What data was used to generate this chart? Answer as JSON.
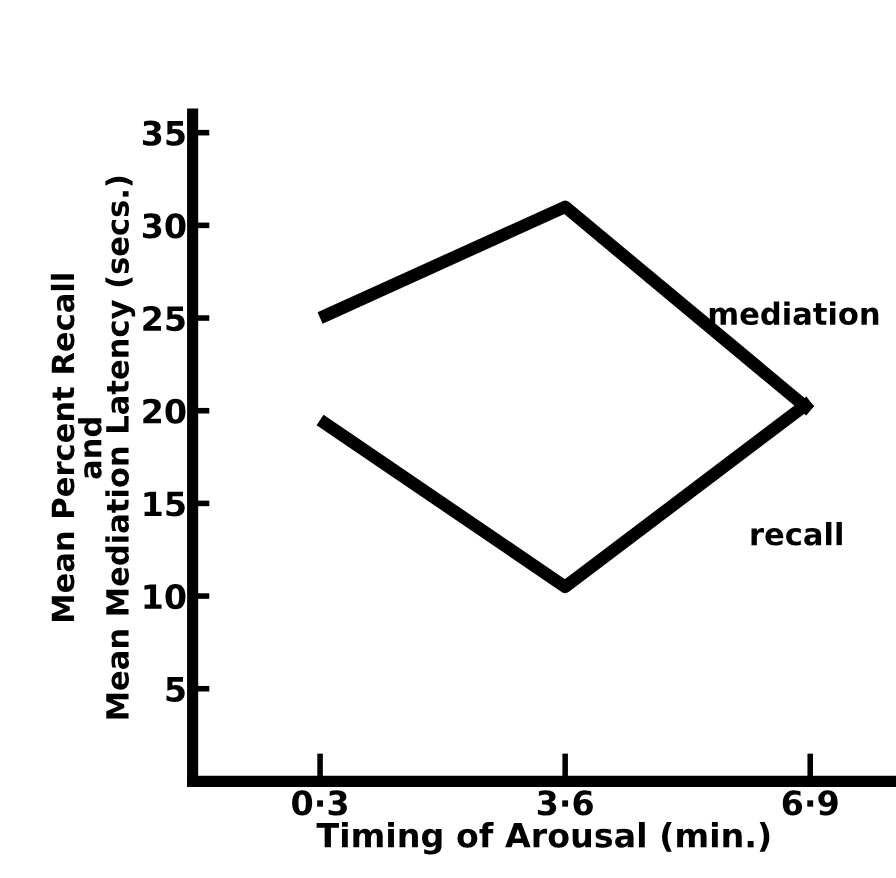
{
  "chart_data": {
    "type": "line",
    "xlabel": "Timing of Arousal (min.)",
    "ylabel": "Mean Percent Recall\nand\nMean Mediation Latency (secs.)",
    "categories": [
      "0·3",
      "3·6",
      "6·9"
    ],
    "series": [
      {
        "name": "mediation",
        "color": "#000000",
        "values": [
          25,
          31,
          20
        ]
      },
      {
        "name": "recall",
        "color": "#000000",
        "values": [
          19.5,
          10.5,
          20.5
        ]
      }
    ],
    "ylim": [
      0,
      36
    ],
    "yticks": [
      5,
      10,
      15,
      20,
      25,
      30,
      35
    ],
    "grid": false,
    "legend": false,
    "marker": "none",
    "line_style": "solid"
  }
}
